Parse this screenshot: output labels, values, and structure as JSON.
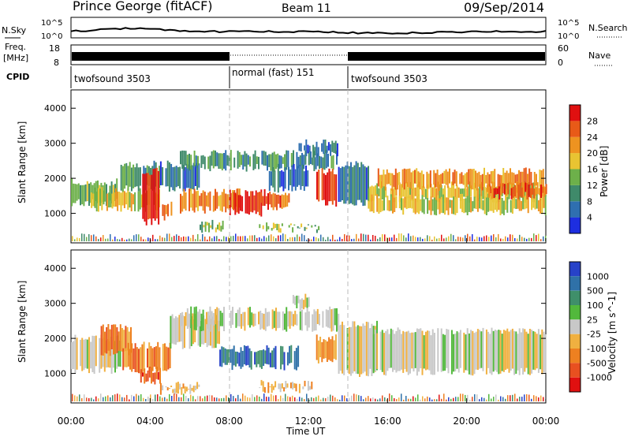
{
  "header": {
    "station": "Prince George (fitACF)",
    "beam": "Beam 11",
    "date": "09/Sep/2014"
  },
  "rows": {
    "nsky_label": "N.Sky",
    "freq_label_1": "Freq.",
    "freq_label_2": "[MHz]",
    "cpid_label": "CPID",
    "nsearch_label": "N.Search",
    "nave_label": "Nave",
    "nsky_ticks": [
      "10^5",
      "10^0"
    ],
    "freq_ticks": [
      "18",
      "8"
    ],
    "nave_ticks": [
      "60",
      "0"
    ]
  },
  "cpid_segments": [
    {
      "label": "twofsound 3503",
      "start_h": 0,
      "end_h": 7.83
    },
    {
      "label": "normal (fast) 151",
      "start_h": 7.83,
      "end_h": 14.0
    },
    {
      "label": "twofsound 3503",
      "start_h": 14.0,
      "end_h": 24
    }
  ],
  "axes": {
    "x_label": "Time UT",
    "x_ticks": [
      "00:00",
      "04:00",
      "08:00",
      "12:00",
      "16:00",
      "20:00",
      "00:00"
    ],
    "y_label": "Slant Range [km]",
    "y_ticks": [
      "1000",
      "2000",
      "3000",
      "4000"
    ],
    "x_range_h": [
      0,
      24
    ],
    "y_range_km": [
      180,
      4500
    ]
  },
  "colorbars": {
    "power_label": "Power [dB]",
    "power_ticks": [
      "4",
      "8",
      "12",
      "16",
      "20",
      "24",
      "28"
    ],
    "power_colors": [
      "#1d2ee0",
      "#2f6fb0",
      "#3f8a6a",
      "#6db04a",
      "#e8c432",
      "#ee9320",
      "#e85a18",
      "#e01010"
    ],
    "velocity_label": "Velocity [m s^-1]",
    "velocity_ticks": [
      "1000",
      "500",
      "100",
      "25",
      "-25",
      "-100",
      "-500",
      "-1000"
    ],
    "velocity_colors": [
      "#2742c8",
      "#2f71a8",
      "#3f8f6a",
      "#52b83c",
      "#c8c8c8",
      "#f0b040",
      "#ee8020",
      "#e85020",
      "#e01010"
    ]
  },
  "chart_data": {
    "type": "heatmap",
    "title": "Prince George (fitACF)",
    "x_unit": "hours UT",
    "y_unit": "km",
    "power_bands": [
      {
        "t0": 0,
        "t1": 2.3,
        "r0": 1300,
        "r1": 1900,
        "level": 3
      },
      {
        "t0": 1.0,
        "t1": 4.5,
        "r0": 1150,
        "r1": 1650,
        "level": 4
      },
      {
        "t0": 2.5,
        "t1": 4.5,
        "r0": 1700,
        "r1": 2400,
        "level": 2
      },
      {
        "t0": 3.6,
        "t1": 4.4,
        "r0": 750,
        "r1": 2200,
        "level": 7
      },
      {
        "t0": 4.6,
        "t1": 5.1,
        "r0": 900,
        "r1": 1300,
        "level": 6
      },
      {
        "t0": 4.5,
        "t1": 6.5,
        "r0": 1700,
        "r1": 2400,
        "level": 1
      },
      {
        "t0": 5.5,
        "t1": 13.5,
        "r0": 2300,
        "r1": 2700,
        "level": 2
      },
      {
        "t0": 5.5,
        "t1": 8.5,
        "r0": 1100,
        "r1": 1600,
        "level": 5
      },
      {
        "t0": 6.5,
        "t1": 7.7,
        "r0": 550,
        "r1": 700,
        "level": 3
      },
      {
        "t0": 8.0,
        "t1": 9.6,
        "r0": 1000,
        "r1": 1600,
        "level": 7
      },
      {
        "t0": 9.4,
        "t1": 11.0,
        "r0": 1200,
        "r1": 1600,
        "level": 6
      },
      {
        "t0": 9.5,
        "t1": 12.5,
        "r0": 550,
        "r1": 650,
        "level": 3
      },
      {
        "t0": 10.0,
        "t1": 12.0,
        "r0": 1700,
        "r1": 2300,
        "level": 1
      },
      {
        "t0": 12.4,
        "t1": 13.4,
        "r0": 1300,
        "r1": 2200,
        "level": 7
      },
      {
        "t0": 11.5,
        "t1": 13.5,
        "r0": 2700,
        "r1": 3000,
        "level": 1
      },
      {
        "t0": 13.5,
        "t1": 15.0,
        "r0": 1300,
        "r1": 2400,
        "level": 1
      },
      {
        "t0": 15.0,
        "t1": 24.0,
        "r0": 1400,
        "r1": 1800,
        "level": 4
      },
      {
        "t0": 15.5,
        "t1": 24.0,
        "r0": 1750,
        "r1": 2200,
        "level": 5
      },
      {
        "t0": 15.0,
        "t1": 24.0,
        "r0": 1050,
        "r1": 1450,
        "level": 4
      },
      {
        "t0": 21.0,
        "t1": 24.0,
        "r0": 1500,
        "r1": 1800,
        "level": 6
      }
    ],
    "velocity_bands": [
      {
        "t0": 0,
        "t1": 2.5,
        "r0": 1100,
        "r1": 2000,
        "level": 4
      },
      {
        "t0": 1.5,
        "t1": 3.0,
        "r0": 1600,
        "r1": 2300,
        "level": 6
      },
      {
        "t0": 2.6,
        "t1": 5.0,
        "r0": 1100,
        "r1": 1800,
        "level": 6
      },
      {
        "t0": 3.5,
        "t1": 4.5,
        "r0": 800,
        "r1": 1100,
        "level": 7
      },
      {
        "t0": 4.5,
        "t1": 6.5,
        "r0": 500,
        "r1": 650,
        "level": 5
      },
      {
        "t0": 5.0,
        "t1": 7.5,
        "r0": 1800,
        "r1": 2600,
        "level": 4
      },
      {
        "t0": 5.5,
        "t1": 13.5,
        "r0": 2300,
        "r1": 2800,
        "level": 4
      },
      {
        "t0": 7.5,
        "t1": 11.5,
        "r0": 1200,
        "r1": 1700,
        "level": 1
      },
      {
        "t0": 9.5,
        "t1": 12.2,
        "r0": 550,
        "r1": 700,
        "level": 5
      },
      {
        "t0": 12.3,
        "t1": 13.4,
        "r0": 1350,
        "r1": 2000,
        "level": 6
      },
      {
        "t0": 13.5,
        "t1": 15.5,
        "r0": 1000,
        "r1": 2400,
        "level": 4
      },
      {
        "t0": 15.0,
        "t1": 24.0,
        "r0": 1050,
        "r1": 2200,
        "level": 4
      },
      {
        "t0": 11.2,
        "t1": 12.0,
        "r0": 2900,
        "r1": 3200,
        "level": 4
      }
    ]
  }
}
